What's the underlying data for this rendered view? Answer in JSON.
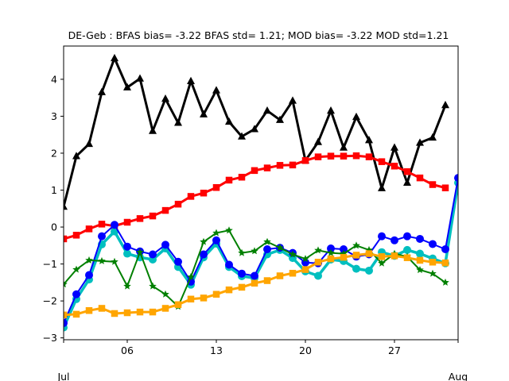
{
  "chart_data": {
    "type": "line",
    "title": "DE-Geb   : BFAS bias= -3.22 BFAS std= 1.21; MOD bias= -3.22 MOD std=1.21",
    "xlabel": "",
    "ylabel": "",
    "x_start": "Jul 1",
    "x_ticks": [
      {
        "day": 0,
        "label": ""
      },
      {
        "day": 5,
        "label": "06"
      },
      {
        "day": 12,
        "label": "13"
      },
      {
        "day": 19,
        "label": "20"
      },
      {
        "day": 26,
        "label": "27"
      },
      {
        "day": 31,
        "label": ""
      }
    ],
    "x_month_labels": [
      {
        "day": 0,
        "label": "Jul"
      },
      {
        "day": 31,
        "label": "Aug"
      }
    ],
    "xlim": [
      0,
      31
    ],
    "y_ticks": [
      -3,
      -2,
      -1,
      0,
      1,
      2,
      3,
      4
    ],
    "ylim": [
      -3.05,
      4.9
    ],
    "grid": false,
    "legend": "none",
    "series": [
      {
        "color": "#000000",
        "marker": "triangle",
        "linewidth": 3,
        "marker_size": 5,
        "points": [
          [
            0,
            0.55
          ],
          [
            1,
            1.92
          ],
          [
            2,
            2.25
          ],
          [
            3,
            3.65
          ],
          [
            4,
            4.57
          ],
          [
            5,
            3.78
          ],
          [
            6,
            4.02
          ],
          [
            7,
            2.6
          ],
          [
            8,
            3.47
          ],
          [
            9,
            2.82
          ],
          [
            10,
            3.95
          ],
          [
            11,
            3.05
          ],
          [
            12,
            3.7
          ],
          [
            13,
            2.85
          ],
          [
            14,
            2.45
          ],
          [
            15,
            2.65
          ],
          [
            16,
            3.15
          ],
          [
            17,
            2.9
          ],
          [
            18,
            3.42
          ],
          [
            19,
            1.8
          ],
          [
            20,
            2.3
          ],
          [
            21,
            3.15
          ],
          [
            22,
            2.15
          ],
          [
            23,
            2.98
          ],
          [
            24,
            2.35
          ],
          [
            25,
            1.05
          ],
          [
            26,
            2.15
          ],
          [
            27,
            1.2
          ],
          [
            28,
            2.28
          ],
          [
            29,
            2.42
          ],
          [
            30,
            3.3
          ]
        ]
      },
      {
        "color": "#ff0000",
        "marker": "square",
        "linewidth": 3,
        "marker_size": 5,
        "points": [
          [
            0,
            -0.32
          ],
          [
            1,
            -0.22
          ],
          [
            2,
            -0.05
          ],
          [
            3,
            0.08
          ],
          [
            4,
            0.03
          ],
          [
            5,
            0.13
          ],
          [
            6,
            0.23
          ],
          [
            7,
            0.3
          ],
          [
            8,
            0.45
          ],
          [
            9,
            0.62
          ],
          [
            10,
            0.83
          ],
          [
            11,
            0.92
          ],
          [
            12,
            1.07
          ],
          [
            13,
            1.27
          ],
          [
            14,
            1.35
          ],
          [
            15,
            1.53
          ],
          [
            16,
            1.6
          ],
          [
            17,
            1.67
          ],
          [
            18,
            1.68
          ],
          [
            19,
            1.8
          ],
          [
            20,
            1.9
          ],
          [
            21,
            1.92
          ],
          [
            22,
            1.92
          ],
          [
            23,
            1.93
          ],
          [
            24,
            1.9
          ],
          [
            25,
            1.77
          ],
          [
            26,
            1.65
          ],
          [
            27,
            1.5
          ],
          [
            28,
            1.33
          ],
          [
            29,
            1.15
          ],
          [
            30,
            1.06
          ]
        ]
      },
      {
        "color": "#00bfbf",
        "marker": "circle",
        "linewidth": 3.5,
        "marker_size": 5,
        "points": [
          [
            0,
            -2.72
          ],
          [
            1,
            -1.95
          ],
          [
            2,
            -1.42
          ],
          [
            3,
            -0.47
          ],
          [
            4,
            -0.12
          ],
          [
            5,
            -0.72
          ],
          [
            6,
            -0.82
          ],
          [
            7,
            -0.88
          ],
          [
            8,
            -0.58
          ],
          [
            9,
            -1.08
          ],
          [
            10,
            -1.56
          ],
          [
            11,
            -0.82
          ],
          [
            12,
            -0.45
          ],
          [
            13,
            -1.08
          ],
          [
            14,
            -1.33
          ],
          [
            15,
            -1.38
          ],
          [
            16,
            -0.74
          ],
          [
            17,
            -0.62
          ],
          [
            18,
            -0.84
          ],
          [
            19,
            -1.2
          ],
          [
            20,
            -1.32
          ],
          [
            21,
            -0.88
          ],
          [
            22,
            -0.92
          ],
          [
            23,
            -1.13
          ],
          [
            24,
            -1.18
          ],
          [
            25,
            -0.68
          ],
          [
            26,
            -0.78
          ],
          [
            27,
            -0.62
          ],
          [
            28,
            -0.72
          ],
          [
            29,
            -0.85
          ],
          [
            30,
            -0.98
          ],
          [
            31,
            1.2
          ]
        ]
      },
      {
        "color": "#0000ff",
        "marker": "circle",
        "linewidth": 2,
        "marker_size": 5,
        "points": [
          [
            0,
            -2.6
          ],
          [
            1,
            -1.82
          ],
          [
            2,
            -1.3
          ],
          [
            3,
            -0.25
          ],
          [
            4,
            0.06
          ],
          [
            5,
            -0.53
          ],
          [
            6,
            -0.66
          ],
          [
            7,
            -0.74
          ],
          [
            8,
            -0.48
          ],
          [
            9,
            -0.94
          ],
          [
            10,
            -1.48
          ],
          [
            11,
            -0.74
          ],
          [
            12,
            -0.36
          ],
          [
            13,
            -1.02
          ],
          [
            14,
            -1.26
          ],
          [
            15,
            -1.32
          ],
          [
            16,
            -0.6
          ],
          [
            17,
            -0.56
          ],
          [
            18,
            -0.7
          ],
          [
            19,
            -0.96
          ],
          [
            20,
            -0.98
          ],
          [
            21,
            -0.58
          ],
          [
            22,
            -0.6
          ],
          [
            23,
            -0.8
          ],
          [
            24,
            -0.74
          ],
          [
            25,
            -0.25
          ],
          [
            26,
            -0.36
          ],
          [
            27,
            -0.25
          ],
          [
            28,
            -0.32
          ],
          [
            29,
            -0.46
          ],
          [
            30,
            -0.6
          ],
          [
            31,
            1.33
          ]
        ]
      },
      {
        "color": "#008000",
        "marker": "star",
        "linewidth": 2,
        "marker_size": 5,
        "points": [
          [
            0,
            -1.55
          ],
          [
            1,
            -1.15
          ],
          [
            2,
            -0.9
          ],
          [
            3,
            -0.92
          ],
          [
            4,
            -0.94
          ],
          [
            5,
            -1.6
          ],
          [
            6,
            -0.68
          ],
          [
            7,
            -1.6
          ],
          [
            8,
            -1.82
          ],
          [
            9,
            -2.15
          ],
          [
            10,
            -1.35
          ],
          [
            11,
            -0.4
          ],
          [
            12,
            -0.16
          ],
          [
            13,
            -0.09
          ],
          [
            14,
            -0.7
          ],
          [
            15,
            -0.65
          ],
          [
            16,
            -0.4
          ],
          [
            17,
            -0.56
          ],
          [
            18,
            -0.74
          ],
          [
            19,
            -0.86
          ],
          [
            20,
            -0.63
          ],
          [
            21,
            -0.7
          ],
          [
            22,
            -0.72
          ],
          [
            23,
            -0.5
          ],
          [
            24,
            -0.62
          ],
          [
            25,
            -0.98
          ],
          [
            26,
            -0.72
          ],
          [
            27,
            -0.8
          ],
          [
            28,
            -1.16
          ],
          [
            29,
            -1.26
          ],
          [
            30,
            -1.5
          ]
        ]
      },
      {
        "color": "#ffa500",
        "marker": "square",
        "linewidth": 3,
        "marker_size": 5,
        "points": [
          [
            0,
            -2.38
          ],
          [
            1,
            -2.36
          ],
          [
            2,
            -2.26
          ],
          [
            3,
            -2.2
          ],
          [
            4,
            -2.34
          ],
          [
            5,
            -2.32
          ],
          [
            6,
            -2.3
          ],
          [
            7,
            -2.3
          ],
          [
            8,
            -2.2
          ],
          [
            9,
            -2.1
          ],
          [
            10,
            -1.95
          ],
          [
            11,
            -1.92
          ],
          [
            12,
            -1.82
          ],
          [
            13,
            -1.7
          ],
          [
            14,
            -1.63
          ],
          [
            15,
            -1.52
          ],
          [
            16,
            -1.45
          ],
          [
            17,
            -1.32
          ],
          [
            18,
            -1.25
          ],
          [
            19,
            -1.15
          ],
          [
            20,
            -0.95
          ],
          [
            21,
            -0.86
          ],
          [
            22,
            -0.82
          ],
          [
            23,
            -0.76
          ],
          [
            24,
            -0.72
          ],
          [
            25,
            -0.8
          ],
          [
            26,
            -0.78
          ],
          [
            27,
            -0.83
          ],
          [
            28,
            -0.9
          ],
          [
            29,
            -0.95
          ],
          [
            30,
            -0.97
          ]
        ]
      }
    ]
  }
}
